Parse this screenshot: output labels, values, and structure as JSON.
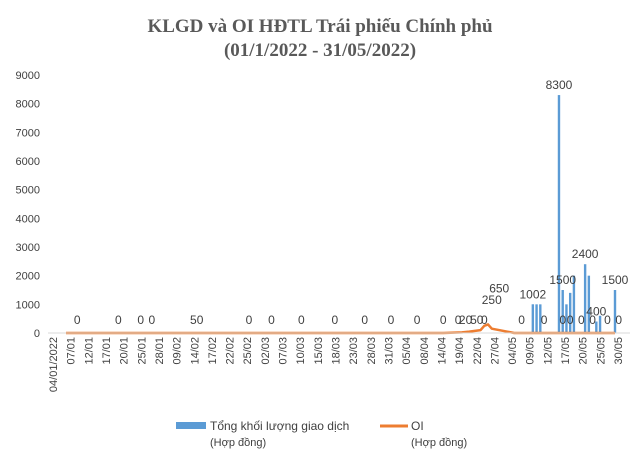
{
  "chart_data": {
    "type": "bar",
    "title": "KLGD và OI HĐTL Trái phiếu Chính phủ",
    "subtitle": "(01/1/2022 - 31/05/2022)",
    "ylim": [
      0,
      9000
    ],
    "y_ticks": [
      "0",
      "1000",
      "2000",
      "3000",
      "4000",
      "5000",
      "6000",
      "7000",
      "8000",
      "9000"
    ],
    "grid": false,
    "legend_position": "bottom",
    "colors": {
      "bars": "#5b9bd5",
      "oi": "#ed7d31"
    },
    "x_tick_labels": [
      "04/01/2022",
      "07/01",
      "12/01",
      "17/01",
      "20/01",
      "25/01",
      "28/01",
      "09/02",
      "14/02",
      "17/02",
      "22/02",
      "25/02",
      "02/03",
      "07/03",
      "10/03",
      "15/03",
      "18/03",
      "23/03",
      "28/03",
      "31/03",
      "05/04",
      "08/04",
      "14/04",
      "19/04",
      "22/04",
      "27/04",
      "04/05",
      "09/05",
      "12/05",
      "17/05",
      "20/05",
      "25/05",
      "30/05"
    ],
    "series": [
      {
        "name": "Tổng khối lượng giao dịch",
        "unit": "(Hợp đồng)",
        "kind": "bar",
        "points": [
          {
            "x": "2022-05-09",
            "value": 1002,
            "label": "1002"
          },
          {
            "x": "2022-05-10",
            "value": 1000
          },
          {
            "x": "2022-05-11",
            "value": 1000
          },
          {
            "x": "2022-05-16",
            "value": 8300,
            "label": "8300"
          },
          {
            "x": "2022-05-17",
            "value": 1500,
            "label": "1500"
          },
          {
            "x": "2022-05-18",
            "value": 1000
          },
          {
            "x": "2022-05-19",
            "value": 1400
          },
          {
            "x": "2022-05-20",
            "value": 2000
          },
          {
            "x": "2022-05-23",
            "value": 2400,
            "label": "2400"
          },
          {
            "x": "2022-05-24",
            "value": 2000
          },
          {
            "x": "2022-05-26",
            "value": 400,
            "label": "400"
          },
          {
            "x": "2022-05-27",
            "value": 600
          },
          {
            "x": "2022-05-31",
            "value": 1500,
            "label": "1500"
          }
        ]
      },
      {
        "name": "OI",
        "unit": "(Hợp đồng)",
        "kind": "line",
        "points": [
          {
            "x": "2022-01-04",
            "value": 0
          },
          {
            "x": "2022-04-15",
            "value": 0
          },
          {
            "x": "2022-04-20",
            "value": 20
          },
          {
            "x": "2022-04-22",
            "value": 50
          },
          {
            "x": "2022-04-25",
            "value": 100
          },
          {
            "x": "2022-04-26",
            "value": 250
          },
          {
            "x": "2022-04-27",
            "value": 300
          },
          {
            "x": "2022-04-28",
            "value": 150
          },
          {
            "x": "2022-05-04",
            "value": 0
          },
          {
            "x": "2022-05-31",
            "value": 0
          }
        ]
      }
    ],
    "data_labels": [
      {
        "x": "2022-01-07",
        "text": "0"
      },
      {
        "x": "2022-01-18",
        "text": "0"
      },
      {
        "x": "2022-01-24",
        "text": "0"
      },
      {
        "x": "2022-01-27",
        "text": "0"
      },
      {
        "x": "2022-02-08",
        "text": "50"
      },
      {
        "x": "2022-02-22",
        "text": "0"
      },
      {
        "x": "2022-02-28",
        "text": "0"
      },
      {
        "x": "2022-03-08",
        "text": "0"
      },
      {
        "x": "2022-03-17",
        "text": "0"
      },
      {
        "x": "2022-03-25",
        "text": "0"
      },
      {
        "x": "2022-04-01",
        "text": "0"
      },
      {
        "x": "2022-04-08",
        "text": "0"
      },
      {
        "x": "2022-04-15",
        "text": "0"
      },
      {
        "x": "2022-04-19",
        "text": "0"
      },
      {
        "x": "2022-04-21",
        "text": "20"
      },
      {
        "x": "2022-04-24",
        "text": "50"
      },
      {
        "x": "2022-04-26",
        "text": "0"
      },
      {
        "x": "2022-04-28",
        "text": "250"
      },
      {
        "x": "2022-04-30",
        "text": "650"
      },
      {
        "x": "2022-05-06",
        "text": "0"
      },
      {
        "x": "2022-05-12",
        "text": "0"
      },
      {
        "x": "2022-05-17",
        "text": "0"
      },
      {
        "x": "2022-05-19",
        "text": "0"
      },
      {
        "x": "2022-05-22",
        "text": "0"
      },
      {
        "x": "2022-05-25",
        "text": "0"
      },
      {
        "x": "2022-05-29",
        "text": "0"
      },
      {
        "x": "2022-06-01",
        "text": "0"
      }
    ]
  }
}
